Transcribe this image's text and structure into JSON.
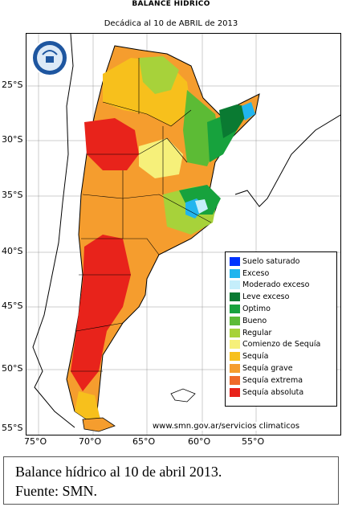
{
  "title": "BALANCE HIDRICO",
  "subtitle": "Decádica al 10 de ABRIL de 2013",
  "latitude_labels": [
    "25°S",
    "30°S",
    "35°S",
    "40°S",
    "45°S",
    "50°S",
    "55°S"
  ],
  "longitude_labels": [
    "75°O",
    "70°O",
    "65°O",
    "60°O",
    "55°O"
  ],
  "legend": [
    {
      "label": "Suelo saturado",
      "color": "#0033ff"
    },
    {
      "label": "Exceso",
      "color": "#22b5ee"
    },
    {
      "label": "Moderado exceso",
      "color": "#c5eefb"
    },
    {
      "label": "Leve exceso",
      "color": "#0a7a32"
    },
    {
      "label": "Optimo",
      "color": "#17a23d"
    },
    {
      "label": "Bueno",
      "color": "#5cbb35"
    },
    {
      "label": "Regular",
      "color": "#a7d23a"
    },
    {
      "label": "Comienzo de Sequía",
      "color": "#f6f07a"
    },
    {
      "label": "Sequía",
      "color": "#f7c01c"
    },
    {
      "label": "Sequía grave",
      "color": "#f59d2e"
    },
    {
      "label": "Sequía extrema",
      "color": "#ef6a2a"
    },
    {
      "label": "Sequía absoluta",
      "color": "#e8231b"
    }
  ],
  "source_url": "www.smn.gov.ar/servicios climaticos",
  "caption": {
    "line1": "Balance hídrico al 10 de abril 2013.",
    "line2": "Fuente: SMN."
  }
}
